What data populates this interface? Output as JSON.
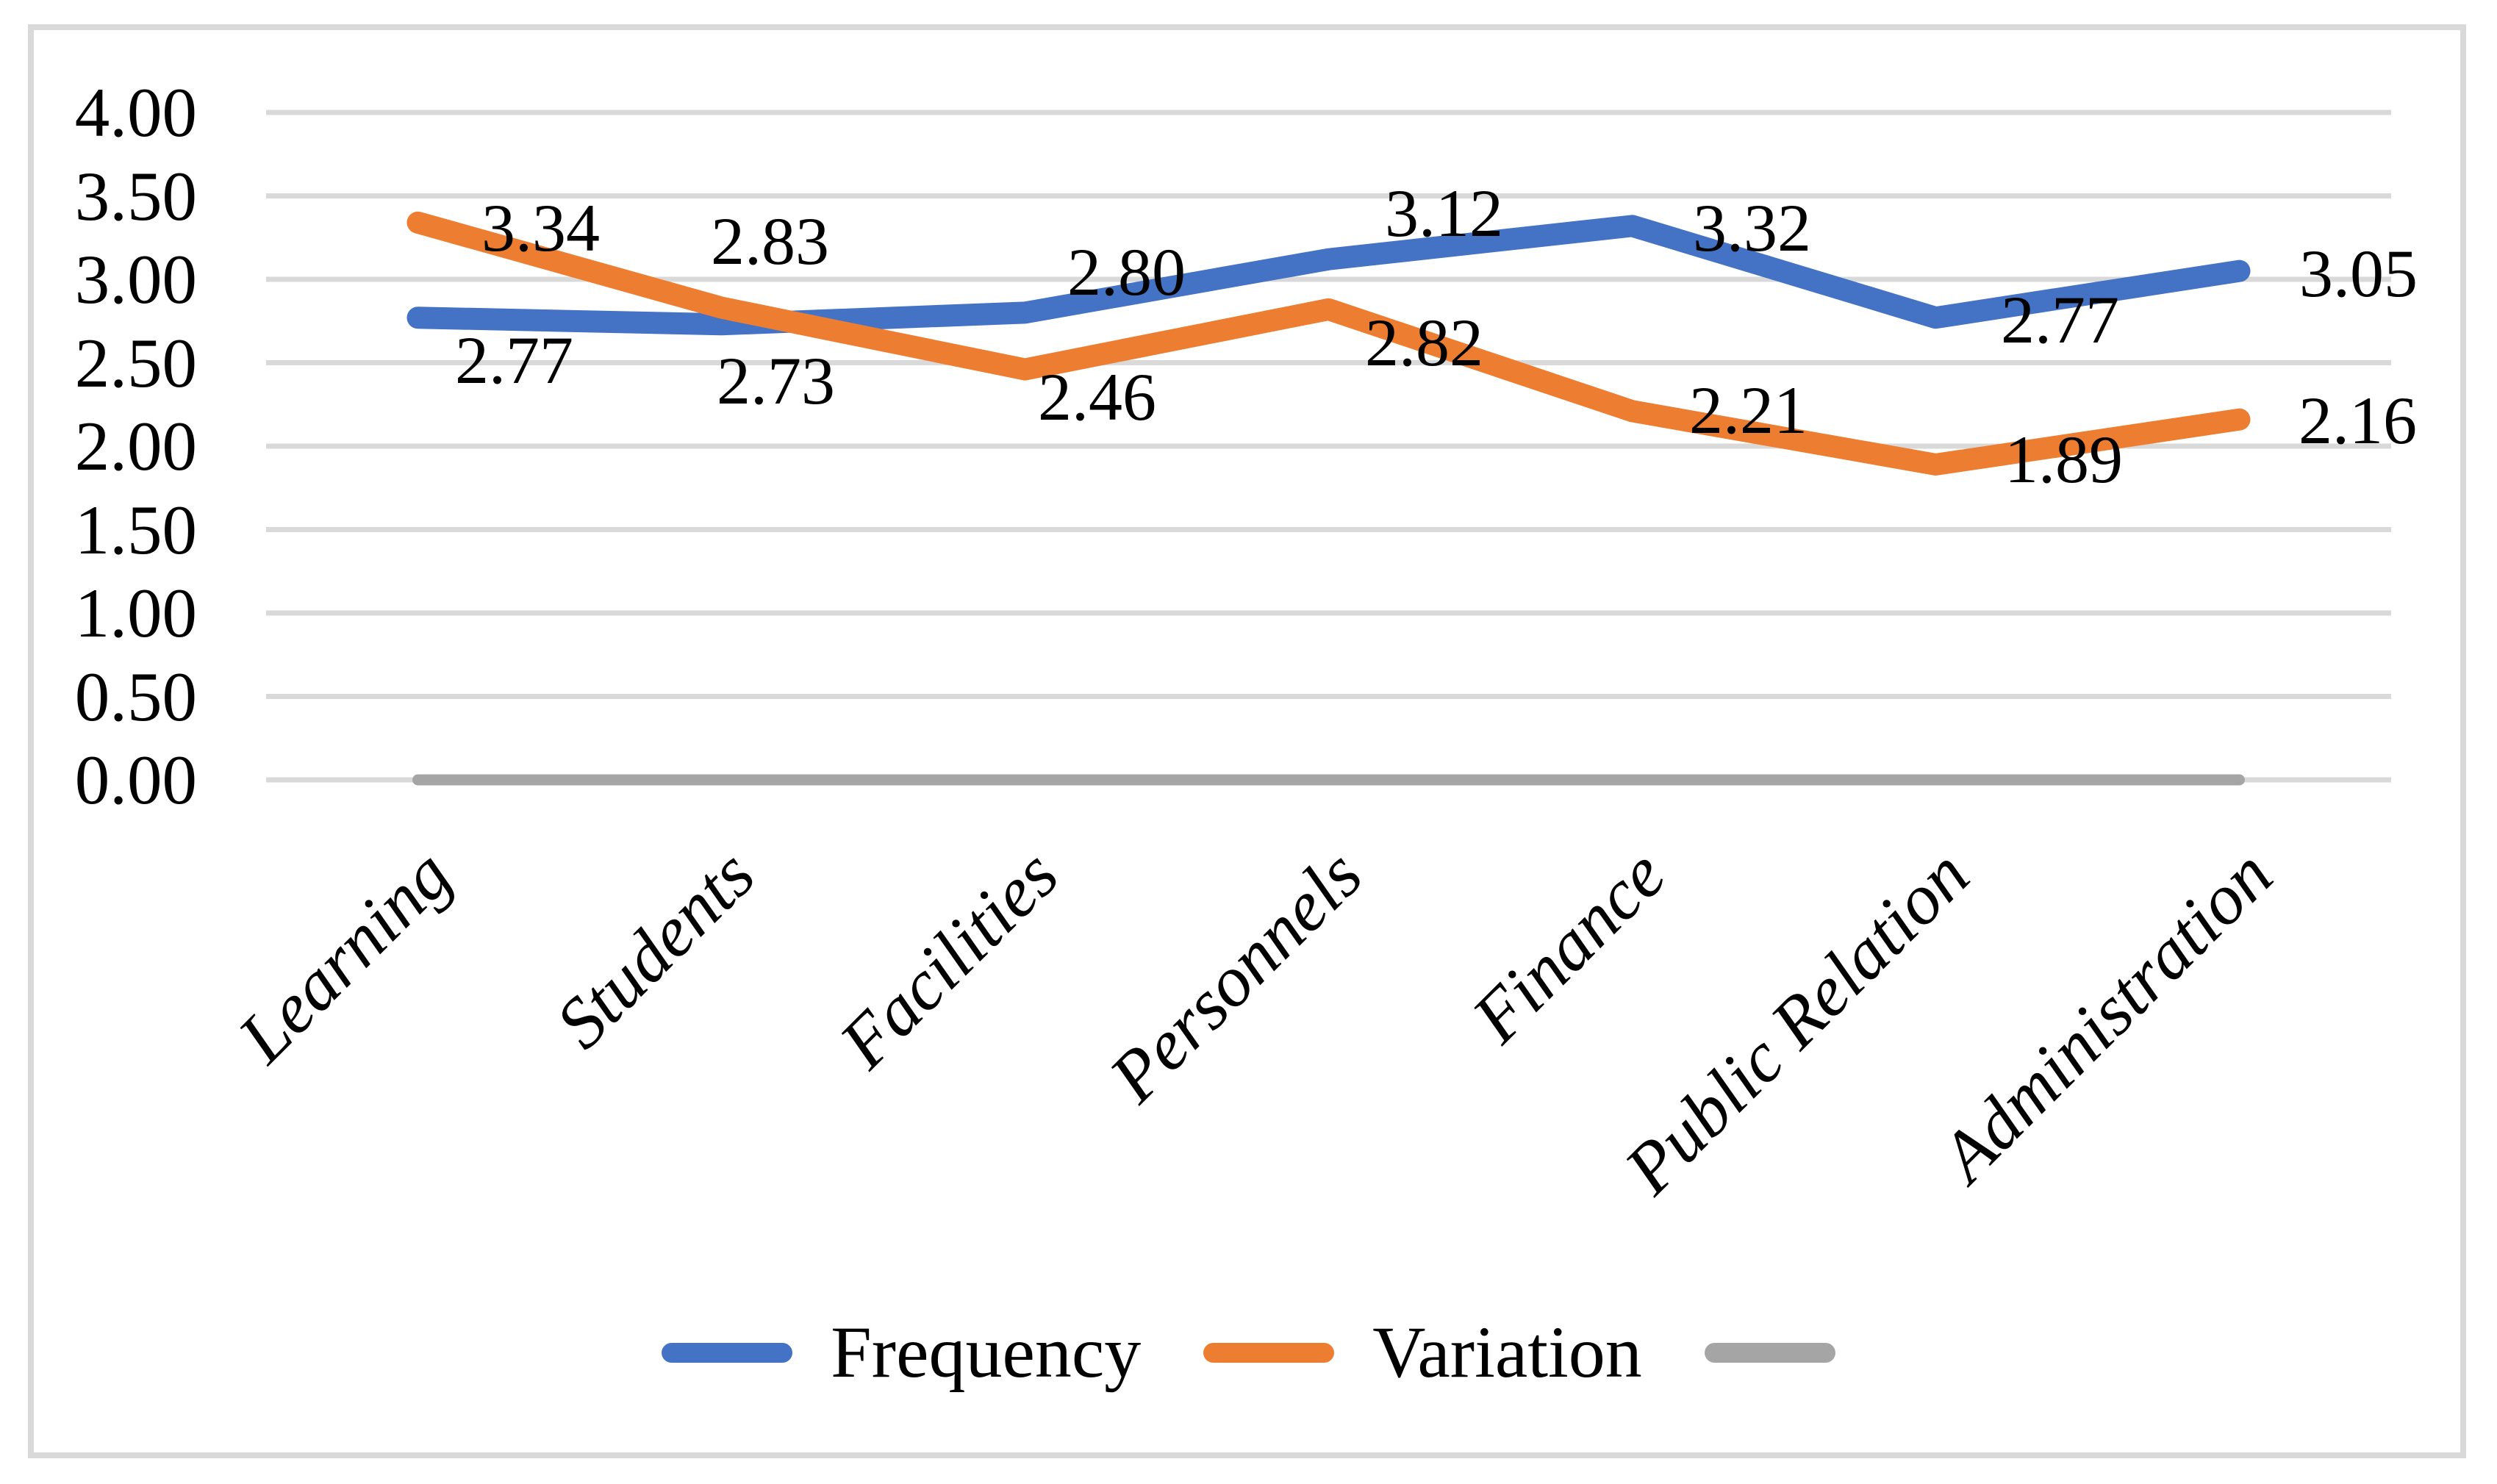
{
  "figure": {
    "background": "#FFFFFF",
    "border_color": "#D9D9D9"
  },
  "chart_data": {
    "type": "line",
    "title": "",
    "categories": [
      "Learning",
      "Students",
      "Facilities",
      "Personnels",
      "Finance",
      "Public Relation",
      "Administration"
    ],
    "series": [
      {
        "name": "Frequency",
        "color": "#4472C4",
        "values": [
          2.77,
          2.73,
          2.8,
          3.12,
          3.32,
          2.77,
          3.05
        ],
        "data_labels": [
          "2.77",
          "2.73",
          "2.80",
          "3.12",
          "3.32",
          "2.77",
          "3.05"
        ],
        "label_offsets": [
          [
            131,
            58
          ],
          [
            74,
            77
          ],
          [
            138,
            -55
          ],
          [
            157,
            -63
          ],
          [
            163,
            3
          ],
          [
            169,
            3
          ],
          [
            162,
            3
          ]
        ]
      },
      {
        "name": "Variation",
        "color": "#ED7D31",
        "values": [
          3.34,
          2.83,
          2.46,
          2.82,
          2.21,
          1.89,
          2.16
        ],
        "data_labels": [
          "3.34",
          "2.83",
          "2.46",
          "2.82",
          "2.21",
          "1.89",
          "2.16"
        ],
        "label_offsets": [
          [
            167,
            7
          ],
          [
            66,
            -91
          ],
          [
            98,
            37
          ],
          [
            130,
            45
          ],
          [
            158,
            -1
          ],
          [
            174,
            -7
          ],
          [
            161,
            1
          ]
        ]
      },
      {
        "name": "",
        "color": "#A5A5A5",
        "values": [
          0,
          0,
          0,
          0,
          0,
          0,
          0
        ],
        "data_labels": [],
        "label_offsets": []
      }
    ],
    "y_axis": {
      "min": 0.0,
      "max": 4.0,
      "step": 0.5,
      "tick_labels": [
        "4.00",
        "3.50",
        "3.00",
        "2.50",
        "2.00",
        "1.50",
        "1.00",
        "0.50",
        "0.00"
      ]
    },
    "x_axis": {
      "label_rotation_deg": 45
    },
    "gridlines": {
      "color": "#D9D9D9",
      "every": 0.5
    },
    "legend": {
      "position": "bottom",
      "entries": [
        "Frequency",
        "Variation",
        ""
      ]
    }
  }
}
